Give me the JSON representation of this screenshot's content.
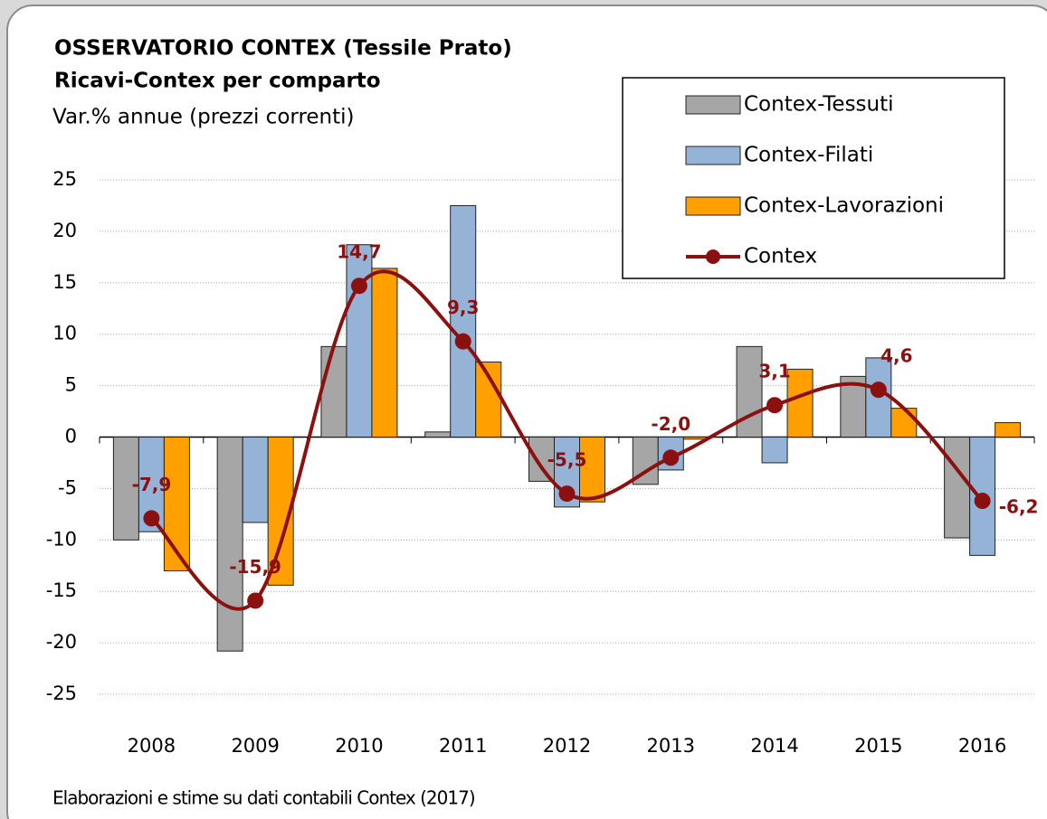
{
  "chart_data": {
    "type": "bar",
    "title": "OSSERVATORIO CONTEX (Tessile Prato)",
    "subtitle": "Ricavi-Contex per comparto",
    "y_label": "Var.% annue (prezzi correnti)",
    "source": "Elaborazioni e stime su dati contabili Contex (2017)",
    "categories": [
      "2008",
      "2009",
      "2010",
      "2011",
      "2012",
      "2013",
      "2014",
      "2015",
      "2016"
    ],
    "series": [
      {
        "name": "Contex-Tessuti",
        "type": "bar",
        "color": "#a6a6a6",
        "values": [
          -10.0,
          -20.8,
          8.8,
          0.5,
          -4.3,
          -4.6,
          8.8,
          5.9,
          -9.8
        ]
      },
      {
        "name": "Contex-Filati",
        "type": "bar",
        "color": "#95b3d7",
        "values": [
          -9.2,
          -8.3,
          18.7,
          22.5,
          -6.8,
          -3.2,
          -2.5,
          7.7,
          -11.5
        ]
      },
      {
        "name": "Contex-Lavorazioni",
        "type": "bar",
        "color": "#ffa000",
        "values": [
          -13.0,
          -14.4,
          16.4,
          7.3,
          -6.3,
          -0.2,
          6.6,
          2.8,
          1.4
        ]
      },
      {
        "name": "Contex",
        "type": "line",
        "color": "#8b1010",
        "values": [
          -7.9,
          -15.9,
          14.7,
          9.3,
          -5.5,
          -2.0,
          3.1,
          4.6,
          -6.2
        ],
        "value_labels": [
          "-7,9",
          "-15,9",
          "14,7",
          "9,3",
          "-5,5",
          "-2,0",
          "3,1",
          "4,6",
          "-6,2"
        ]
      }
    ],
    "ylim": [
      -25,
      25
    ],
    "yticks": [
      -25,
      -20,
      -15,
      -10,
      -5,
      0,
      5,
      10,
      15,
      20,
      25
    ],
    "grid": true,
    "legend": "top-right"
  }
}
